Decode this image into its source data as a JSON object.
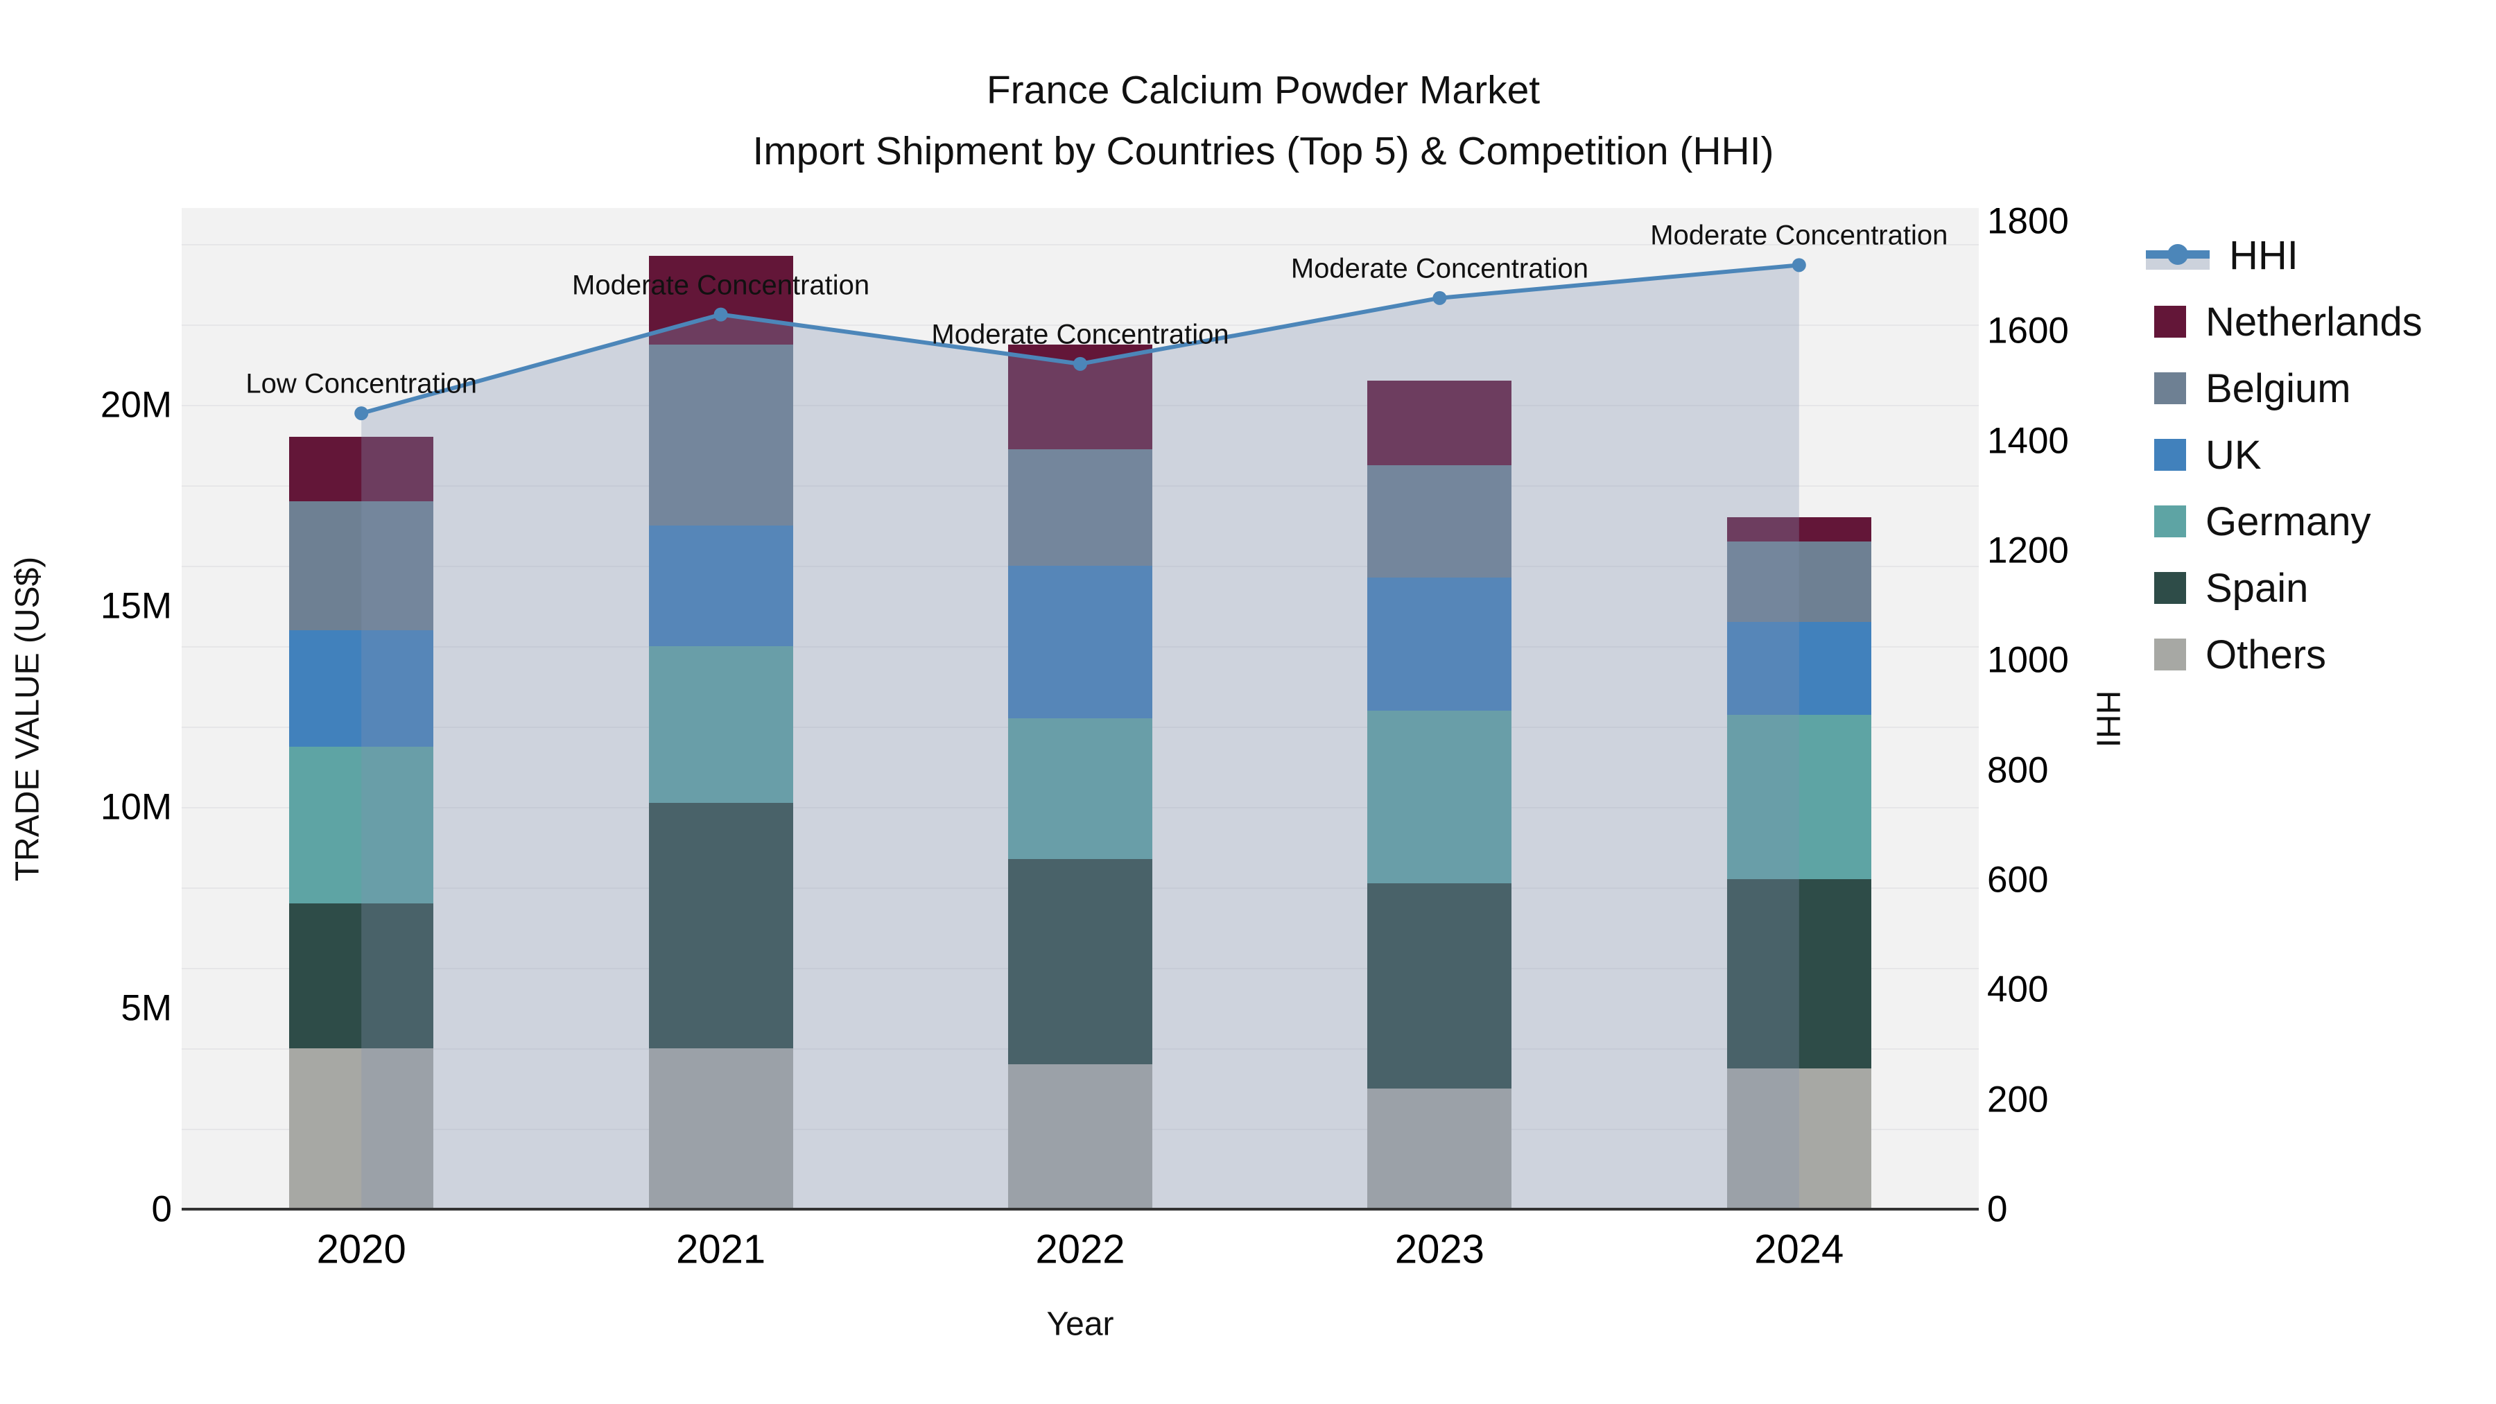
{
  "title": {
    "line1": "France Calcium Powder Market",
    "line2": "Import Shipment by Countries (Top 5) & Competition (HHI)"
  },
  "axes": {
    "left": {
      "title": "TRADE VALUE (US$)",
      "ticks": [
        {
          "value": 0,
          "label": "0"
        },
        {
          "value": 5,
          "label": "5M"
        },
        {
          "value": 10,
          "label": "10M"
        },
        {
          "value": 15,
          "label": "15M"
        },
        {
          "value": 20,
          "label": "20M"
        }
      ]
    },
    "right": {
      "title": "HHI",
      "ticks": [
        0,
        200,
        400,
        600,
        800,
        1000,
        1200,
        1400,
        1600,
        1800
      ]
    },
    "x": {
      "title": "Year"
    }
  },
  "legend_order": [
    "HHI",
    "Netherlands",
    "Belgium",
    "UK",
    "Germany",
    "Spain",
    "Others"
  ],
  "chart_data": {
    "type": "combo: stacked bar (left axis) + line with area fill (right axis)",
    "categories": [
      "2020",
      "2021",
      "2022",
      "2023",
      "2024"
    ],
    "bar_unit": "million US$",
    "stack_order_bottom_to_top": [
      "Others",
      "Spain",
      "Germany",
      "UK",
      "Belgium",
      "Netherlands"
    ],
    "series": [
      {
        "name": "Others",
        "color": "#a7a8a4",
        "values": [
          4.0,
          4.0,
          3.6,
          3.0,
          3.5
        ]
      },
      {
        "name": "Spain",
        "color": "#2e4c48",
        "values": [
          3.6,
          6.1,
          5.1,
          5.1,
          4.7
        ]
      },
      {
        "name": "Germany",
        "color": "#5ea4a4",
        "values": [
          3.9,
          3.9,
          3.5,
          4.3,
          4.1
        ]
      },
      {
        "name": "UK",
        "color": "#4181bc",
        "values": [
          2.9,
          3.0,
          3.8,
          3.3,
          2.3
        ]
      },
      {
        "name": "Belgium",
        "color": "#6e8093",
        "values": [
          3.2,
          4.5,
          2.9,
          2.8,
          2.0
        ]
      },
      {
        "name": "Netherlands",
        "color": "#631638",
        "values": [
          1.6,
          2.2,
          2.6,
          2.1,
          0.6
        ]
      }
    ],
    "bar_totals": [
      19.2,
      23.7,
      21.5,
      20.6,
      17.2
    ],
    "line": {
      "name": "HHI",
      "color": "#4c86b9",
      "area_fill": "rgba(130,146,176,0.32)",
      "values": [
        1450,
        1630,
        1540,
        1660,
        1720
      ]
    },
    "annotations": [
      "Low Concentration",
      "Moderate Concentration",
      "Moderate Concentration",
      "Moderate Concentration",
      "Moderate Concentration"
    ],
    "ylim_left_musd": [
      0,
      25
    ],
    "ylim_right_hhi": [
      0,
      1800
    ],
    "grid": "horizontal, every 2M, left axis",
    "legend_position": "right",
    "plot_background": "#f2f2f2"
  }
}
